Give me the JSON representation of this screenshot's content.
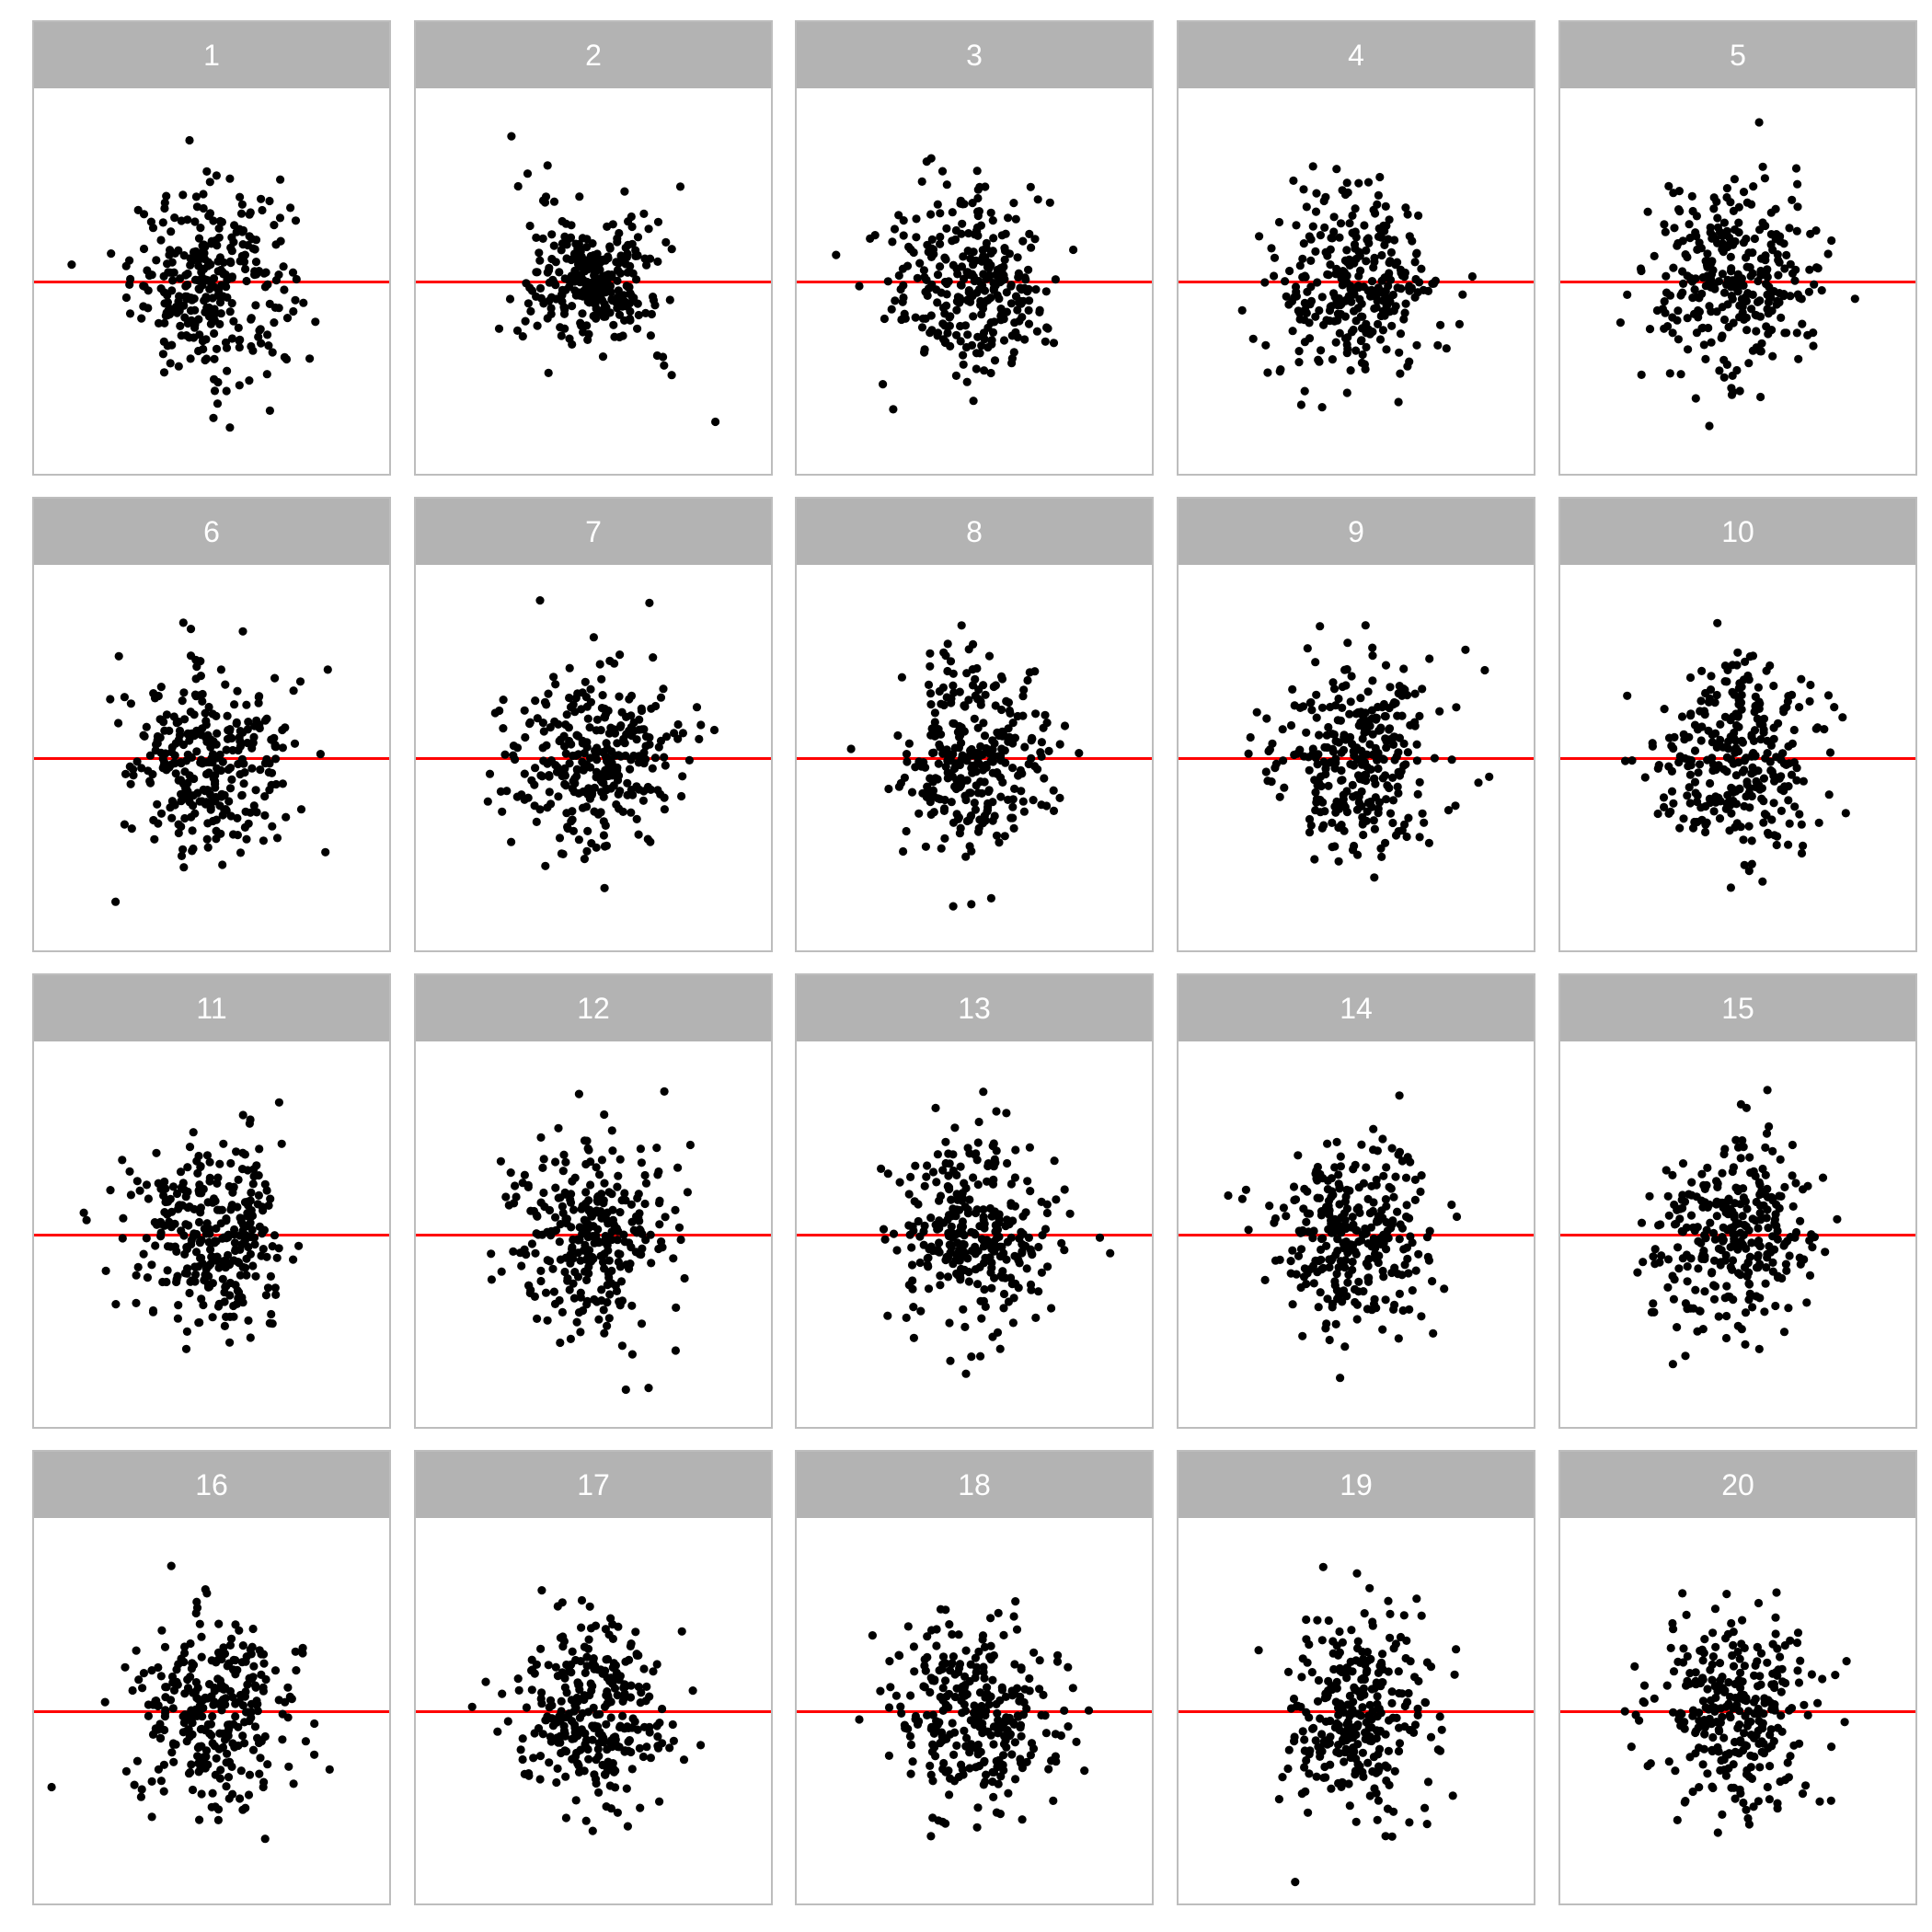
{
  "chart_data": {
    "type": "scatter",
    "title": "",
    "xlabel": "",
    "ylabel": "",
    "layout": "4 rows x 5 columns facet grid",
    "panel_labels": [
      "1",
      "2",
      "3",
      "4",
      "5",
      "6",
      "7",
      "8",
      "9",
      "10",
      "11",
      "12",
      "13",
      "14",
      "15",
      "16",
      "17",
      "18",
      "19",
      "20"
    ],
    "panel_count": 20,
    "reference_line": {
      "y": 0,
      "color": "#ff0000"
    },
    "point_color": "#000000",
    "strip_background": "#b3b3b3",
    "strip_text_color": "#ffffff",
    "panel_border_color": "#bdbdbd",
    "grid": false,
    "axes_shown": false,
    "xlim": [
      -3.5,
      3.5
    ],
    "ylim": [
      -3.5,
      3.5
    ],
    "points_per_panel_approx": 300,
    "series_note": "Each panel shows residual-style scatter (~300 points) centered near y = 0 with x concentrated near 0; panel 2 shows a widening spread at larger x."
  }
}
